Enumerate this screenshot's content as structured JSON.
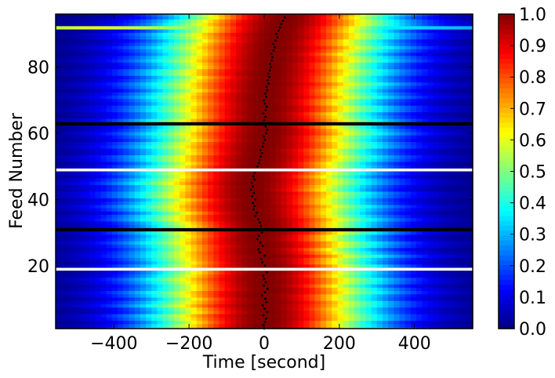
{
  "chart_data": {
    "type": "heatmap",
    "title": "",
    "xlabel": "Time [second]",
    "ylabel": "Feed Number",
    "xlim": [
      -555,
      555
    ],
    "ylim": [
      1,
      96
    ],
    "x_ticks": [
      -400,
      -200,
      0,
      200,
      400
    ],
    "x_tick_labels": [
      "−400",
      "−200",
      "0",
      "200",
      "400"
    ],
    "y_ticks": [
      20,
      40,
      60,
      80
    ],
    "y_tick_labels": [
      "20",
      "40",
      "60",
      "80"
    ],
    "colormap": "jet",
    "colorbar": {
      "range": [
        0.0,
        1.0
      ],
      "ticks": [
        0.0,
        0.1,
        0.2,
        0.3,
        0.4,
        0.5,
        0.6,
        0.7,
        0.8,
        0.9,
        1.0
      ],
      "tick_labels": [
        "0.0",
        "0.1",
        "0.2",
        "0.3",
        "0.4",
        "0.5",
        "0.6",
        "0.7",
        "0.8",
        "0.9",
        "1.0"
      ]
    },
    "beam_model": {
      "sigma_seconds": 205,
      "feed_center_offsets": [
        0,
        -3,
        2,
        5,
        -2,
        8,
        1,
        -4,
        6,
        3,
        -6,
        2,
        9,
        -1,
        4,
        0,
        -3,
        7,
        10,
        2,
        -5,
        -8,
        1,
        -12,
        -15,
        -4,
        -10,
        -18,
        -14,
        -6,
        -22,
        -9,
        -12,
        -16,
        -24,
        -20,
        -28,
        -26,
        -30,
        -24,
        -32,
        -27,
        -35,
        -30,
        -33,
        -26,
        -29,
        -25,
        -21,
        -18,
        -14,
        -12,
        -9,
        -6,
        -10,
        -4,
        -2,
        2,
        -1,
        5,
        8,
        4,
        -3,
        0,
        3,
        -2,
        4,
        7,
        2,
        -1,
        5,
        3,
        8,
        6,
        12,
        9,
        14,
        11,
        15,
        18,
        16,
        20,
        22,
        19,
        25,
        28,
        24,
        30,
        35,
        32,
        38,
        42,
        45,
        50,
        55,
        60
      ]
    },
    "rows_blank_white": [
      19,
      49
    ],
    "rows_blank_black": [
      31,
      63
    ],
    "rows_highlight_yellow": [
      92
    ],
    "colors": {
      "background": "#ffffff",
      "axis": "#000000",
      "blank_white": "#ffffff",
      "blank_black": "#000000",
      "peak_marker": "#000000"
    }
  }
}
